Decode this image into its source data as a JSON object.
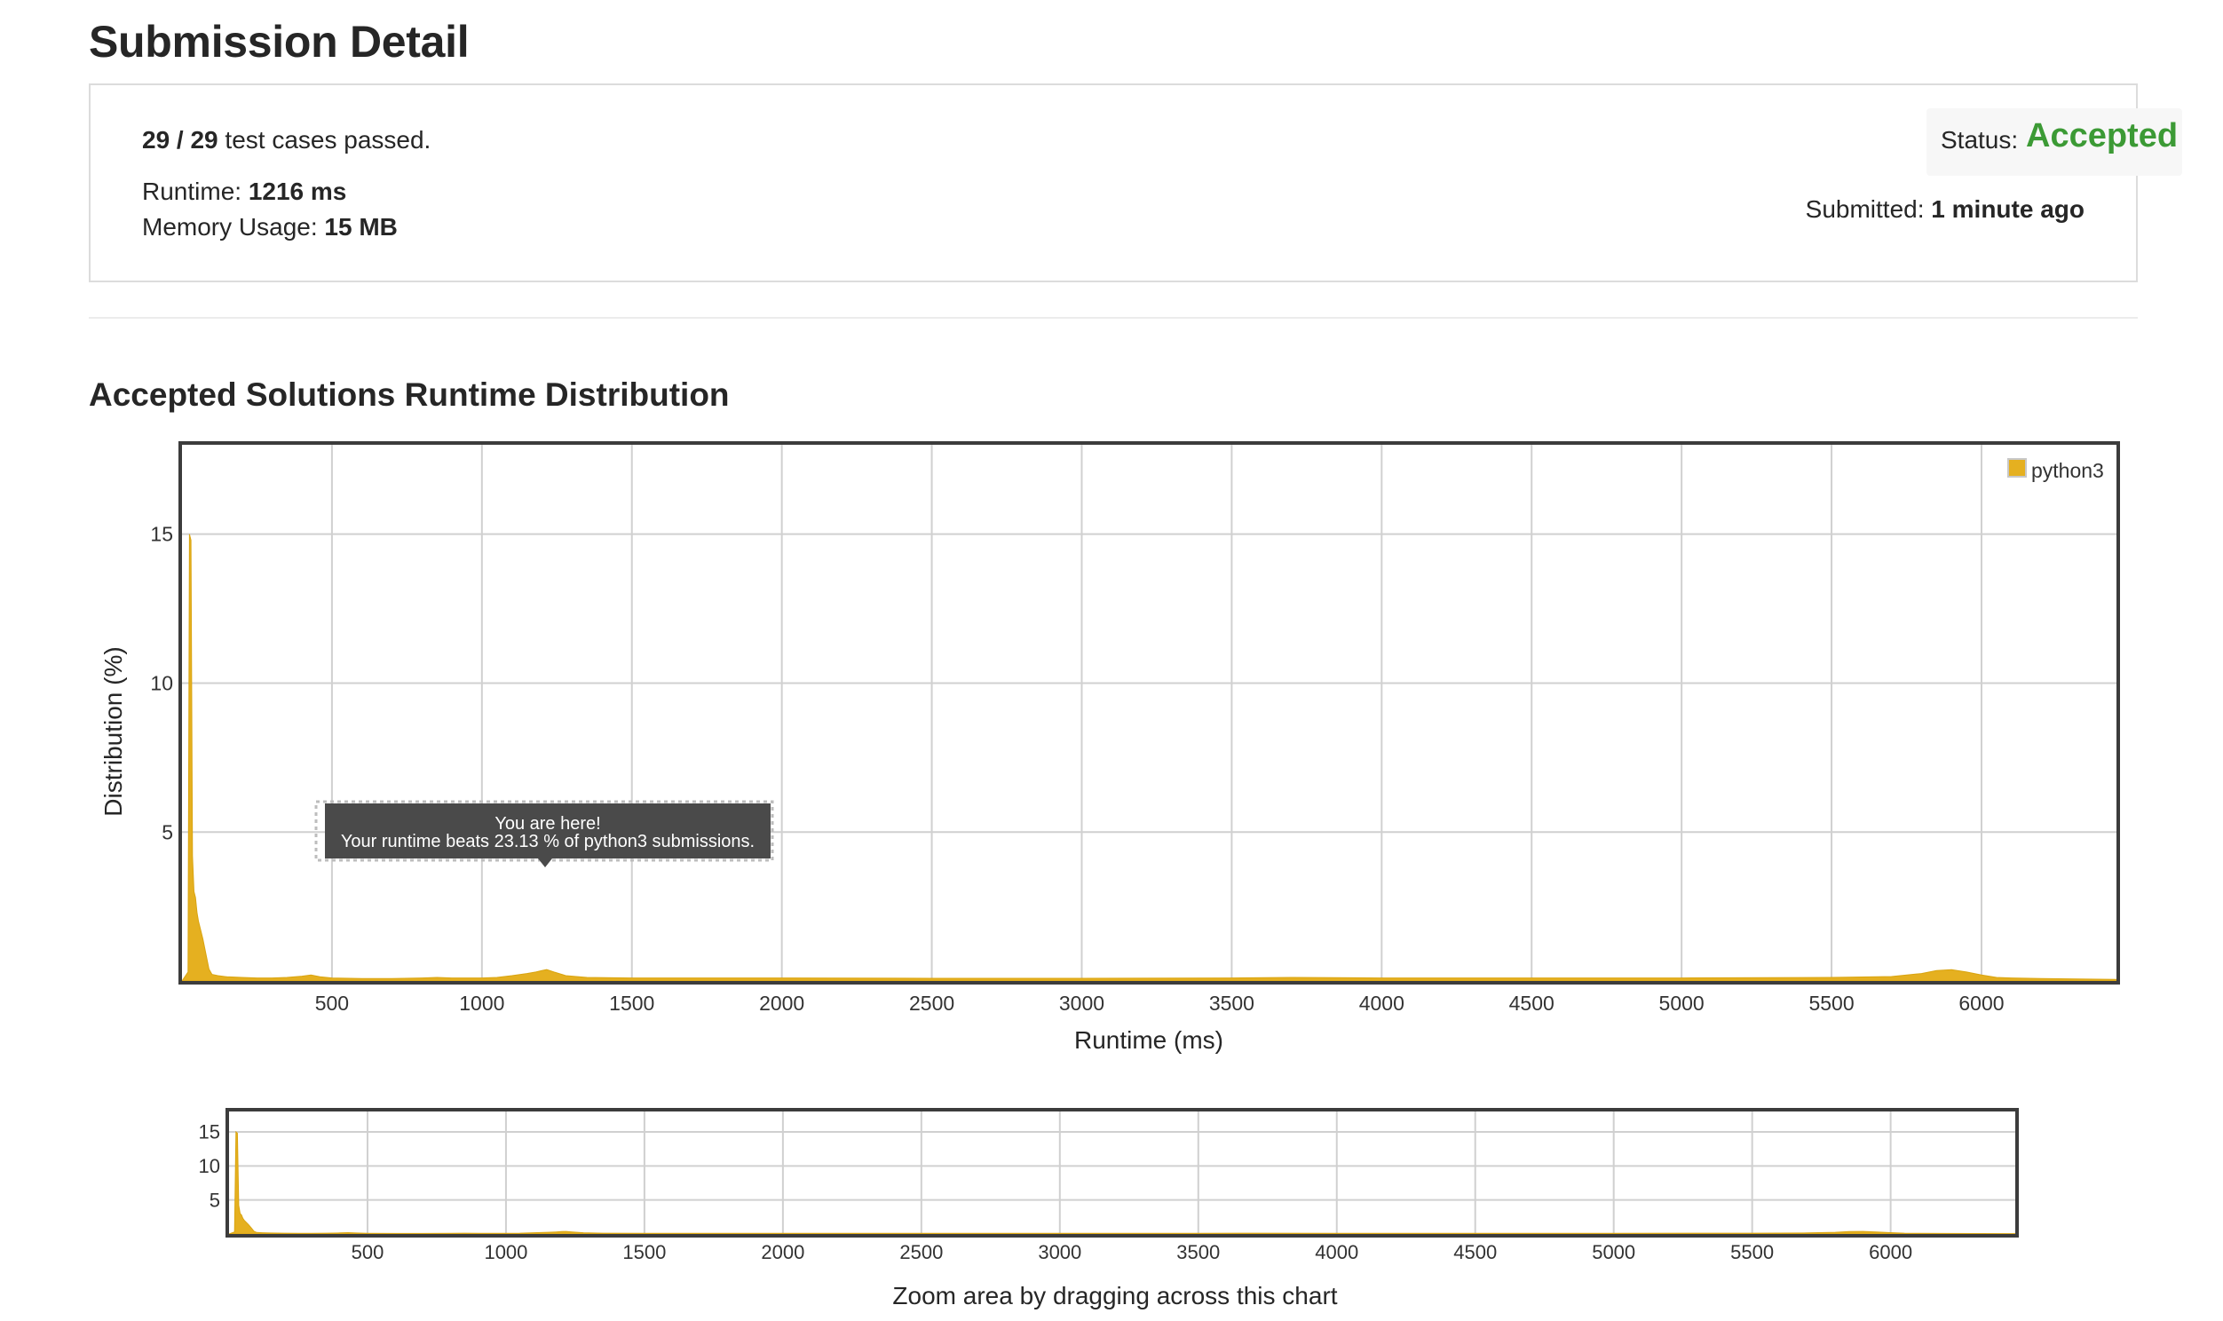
{
  "page": {
    "title": "Submission Detail"
  },
  "summary": {
    "tests_passed": "29 / 29",
    "tests_suffix": " test cases passed.",
    "runtime_label": "Runtime: ",
    "runtime_value": "1216 ms",
    "memory_label": "Memory Usage: ",
    "memory_value": "15 MB",
    "status_label": "Status: ",
    "status_value": "Accepted",
    "submitted_label": "Submitted: ",
    "submitted_value": "1 minute ago"
  },
  "section": {
    "title": "Accepted Solutions Runtime Distribution"
  },
  "tooltip": {
    "line1": "You are here!",
    "line2": "Your runtime beats 23.13 % of python3 submissions."
  },
  "colors": {
    "accent_green": "#3c9a35",
    "series": "#e5b020"
  },
  "chart_data": [
    {
      "type": "area",
      "xlabel": "Runtime (ms)",
      "ylabel": "Distribution (%)",
      "xlim": [
        0,
        6450
      ],
      "ylim": [
        0,
        18
      ],
      "xticks": [
        500,
        1000,
        1500,
        2000,
        2500,
        3000,
        3500,
        4000,
        4500,
        5000,
        5500,
        6000
      ],
      "yticks": [
        5,
        10,
        15
      ],
      "grid": true,
      "legend": "top-right",
      "series": [
        {
          "name": "python3",
          "x": [
            0,
            20,
            25,
            30,
            35,
            40,
            45,
            50,
            55,
            60,
            70,
            80,
            90,
            100,
            120,
            150,
            200,
            250,
            300,
            350,
            400,
            430,
            460,
            500,
            600,
            700,
            800,
            850,
            900,
            1000,
            1050,
            1100,
            1150,
            1180,
            1200,
            1216,
            1240,
            1280,
            1350,
            1500,
            1700,
            2000,
            2500,
            3000,
            3500,
            3700,
            4000,
            4500,
            5000,
            5500,
            5700,
            5800,
            5850,
            5900,
            5950,
            6000,
            6050,
            6100,
            6200,
            6450
          ],
          "values": [
            0,
            0.3,
            15,
            14.8,
            4.2,
            3.0,
            2.8,
            2.3,
            2.0,
            1.8,
            1.4,
            0.9,
            0.4,
            0.22,
            0.18,
            0.14,
            0.12,
            0.1,
            0.1,
            0.12,
            0.16,
            0.2,
            0.14,
            0.1,
            0.08,
            0.08,
            0.1,
            0.12,
            0.1,
            0.1,
            0.12,
            0.18,
            0.25,
            0.3,
            0.35,
            0.38,
            0.3,
            0.18,
            0.12,
            0.1,
            0.1,
            0.1,
            0.09,
            0.09,
            0.1,
            0.12,
            0.1,
            0.1,
            0.1,
            0.12,
            0.15,
            0.25,
            0.35,
            0.38,
            0.3,
            0.2,
            0.12,
            0.1,
            0.08,
            0.05
          ]
        }
      ]
    },
    {
      "type": "area",
      "xlabel": "Zoom area by dragging across this chart",
      "xlim": [
        0,
        6450
      ],
      "ylim": [
        0,
        18
      ],
      "xticks": [
        500,
        1000,
        1500,
        2000,
        2500,
        3000,
        3500,
        4000,
        4500,
        5000,
        5500,
        6000
      ],
      "yticks": [
        5,
        10,
        15
      ],
      "grid": true
    }
  ]
}
